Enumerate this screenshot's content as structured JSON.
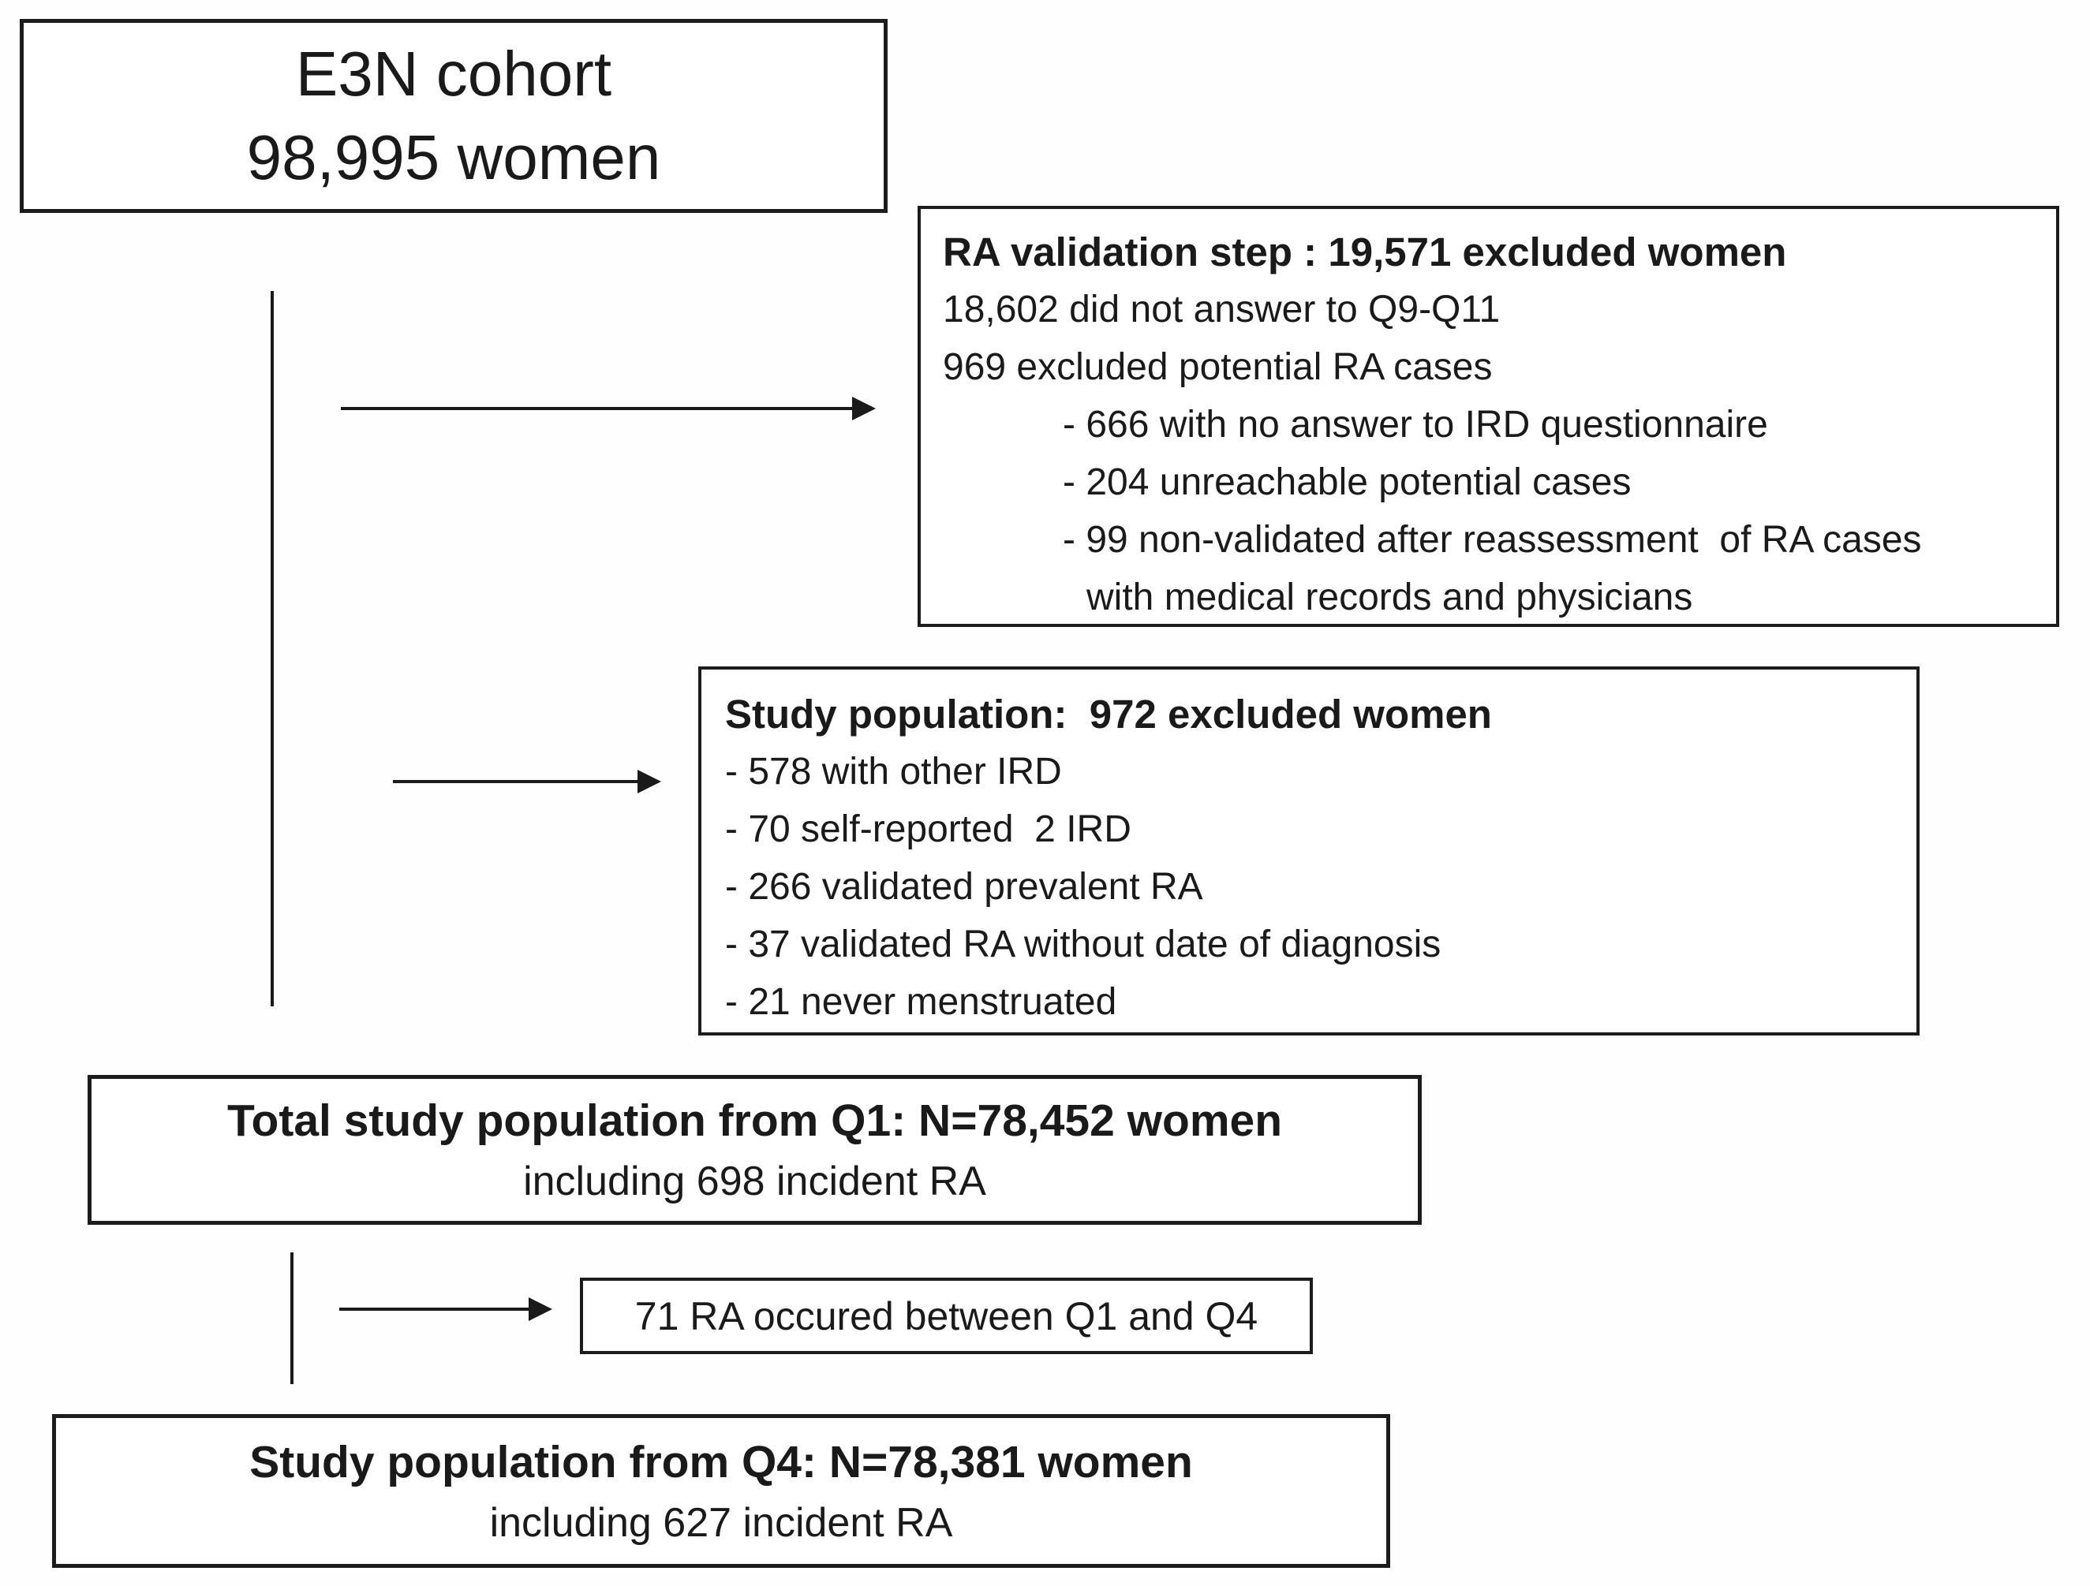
{
  "diagram": {
    "cohort_box": {
      "line1": "E3N cohort",
      "line2": "98,995 women"
    },
    "ra_validation_box": {
      "title": "RA validation step : 19,571 excluded women",
      "rows": [
        "18,602 did not answer to Q9-Q11",
        "969 excluded potential RA cases"
      ],
      "sub_rows": [
        "- 666 with no answer to IRD questionnaire",
        "- 204 unreachable potential cases",
        "- 99 non-validated after reassessment  of RA cases"
      ],
      "sub_continuation": "with medical records and physicians"
    },
    "study_population_box": {
      "title": "Study population:  972 excluded women",
      "rows": [
        "- 578 with other IRD",
        "- 70 self-reported  2 IRD",
        "- 266 validated prevalent RA",
        "- 37 validated RA without date of diagnosis",
        "- 21 never menstruated"
      ]
    },
    "total_q1_box": {
      "title": "Total study population from Q1: N=78,452 women",
      "subtitle": "including 698 incident RA"
    },
    "between_box": {
      "label": "71 RA occured between Q1 and Q4"
    },
    "q4_box": {
      "title": "Study population from Q4: N=78,381 women",
      "subtitle": "including 627 incident RA"
    }
  },
  "colors": {
    "ink": "#1a1a1a",
    "border": "#1c1c1c",
    "background": "#ffffff"
  }
}
